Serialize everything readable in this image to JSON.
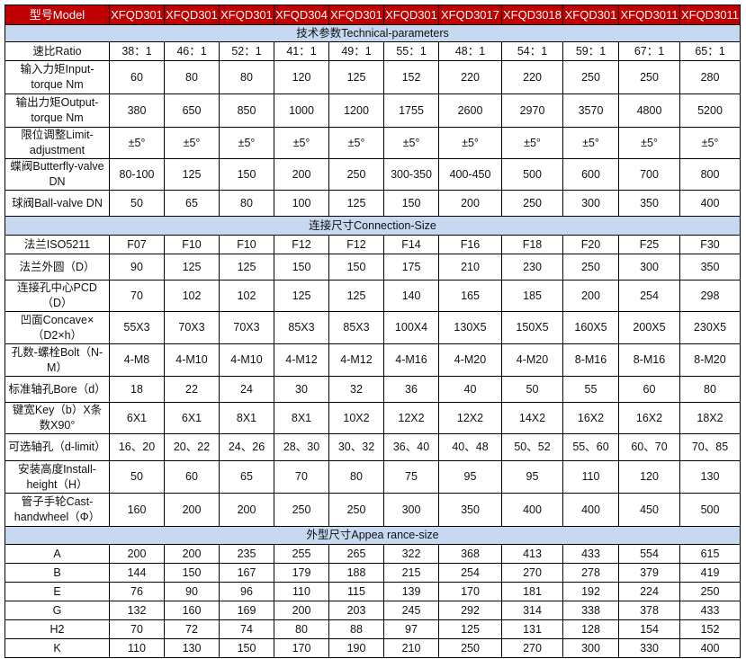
{
  "header": {
    "label": "型号Model",
    "models": [
      "XFQD301",
      "XFQD301",
      "XFQD301",
      "XFQD304",
      "XFQD301",
      "XFQD301",
      "XFQD3017",
      "XFQD3018",
      "XFQD301",
      "XFQD3011",
      "XFQD3011"
    ]
  },
  "colors": {
    "header_bg": "#c00000",
    "section_bg": "#c6d9f0"
  },
  "sections": [
    {
      "title": "技术参数Technical-parameters",
      "rows": [
        {
          "label": "速比Ratio",
          "values": [
            "38：1",
            "46：1",
            "52：1",
            "41：1",
            "49：1",
            "55：1",
            "48：1",
            "54：1",
            "59：1",
            "67：1",
            "65：1"
          ]
        },
        {
          "label": "输入力矩Input-torque Nm",
          "values": [
            "60",
            "80",
            "80",
            "120",
            "125",
            "152",
            "220",
            "220",
            "250",
            "250",
            "280"
          ]
        },
        {
          "label": "输出力矩Output-torque Nm",
          "values": [
            "380",
            "650",
            "850",
            "1000",
            "1200",
            "1755",
            "2600",
            "2970",
            "3570",
            "4800",
            "5200"
          ]
        },
        {
          "label": "限位调整Limit-adjustment",
          "values": [
            "±5°",
            "±5°",
            "±5°",
            "±5°",
            "±5°",
            "±5°",
            "±5°",
            "±5°",
            "±5°",
            "±5°",
            "±5°"
          ]
        },
        {
          "label": "蝶阀Butterfly-valve DN",
          "values": [
            "80-100",
            "125",
            "150",
            "200",
            "250",
            "300-350",
            "400-450",
            "500",
            "600",
            "700",
            "800"
          ]
        },
        {
          "label": "球阀Ball-valve DN",
          "values": [
            "50",
            "65",
            "80",
            "100",
            "125",
            "150",
            "200",
            "250",
            "300",
            "350",
            "400"
          ]
        }
      ]
    },
    {
      "title": "连接尺寸Connection-Size",
      "rows": [
        {
          "label": "法兰ISO5211",
          "values": [
            "F07",
            "F10",
            "F10",
            "F12",
            "F12",
            "F14",
            "F16",
            "F18",
            "F20",
            "F25",
            "F30"
          ]
        },
        {
          "label": "法兰外圆（D）",
          "values": [
            "90",
            "125",
            "125",
            "150",
            "150",
            "175",
            "210",
            "230",
            "250",
            "300",
            "350"
          ]
        },
        {
          "label": "连接孔中心PCD（D）",
          "values": [
            "70",
            "102",
            "102",
            "125",
            "125",
            "140",
            "165",
            "185",
            "200",
            "254",
            "298"
          ]
        },
        {
          "label": "凹面Concave×（D2×h）",
          "values": [
            "55X3",
            "70X3",
            "70X3",
            "85X3",
            "85X3",
            "100X4",
            "130X5",
            "150X5",
            "160X5",
            "200X5",
            "230X5"
          ]
        },
        {
          "label": "孔数-螺栓Bolt（N-M）",
          "values": [
            "4-M8",
            "4-M10",
            "4-M10",
            "4-M12",
            "4-M12",
            "4-M16",
            "4-M20",
            "4-M20",
            "8-M16",
            "8-M16",
            "8-M20"
          ]
        },
        {
          "label": "标准轴孔Bore（d）",
          "values": [
            "18",
            "22",
            "24",
            "30",
            "32",
            "36",
            "40",
            "50",
            "55",
            "60",
            "80"
          ]
        },
        {
          "label": "键宽Key（b）X条数X90°",
          "values": [
            "6X1",
            "6X1",
            "8X1",
            "8X1",
            "10X2",
            "12X2",
            "12X2",
            "14X2",
            "16X2",
            "16X2",
            "18X2"
          ]
        },
        {
          "label": "可选轴孔（d-limit）",
          "values": [
            "16、20",
            "20、22",
            "24、26",
            "28、30",
            "30、32",
            "36、40",
            "40、48",
            "50、52",
            "55、60",
            "60、70",
            "70、85"
          ]
        },
        {
          "label": "安装高度Install-height（H）",
          "values": [
            "50",
            "60",
            "65",
            "70",
            "80",
            "75",
            "95",
            "95",
            "110",
            "120",
            "130"
          ]
        },
        {
          "label": "管子手轮Cast-handwheel（Φ）",
          "values": [
            "160",
            "200",
            "200",
            "250",
            "250",
            "300",
            "350",
            "400",
            "400",
            "450",
            "500"
          ]
        }
      ]
    },
    {
      "title": "外型尺寸Appea rance-size",
      "rows": [
        {
          "label": "A",
          "values": [
            "200",
            "200",
            "235",
            "255",
            "265",
            "322",
            "368",
            "413",
            "433",
            "554",
            "615"
          ]
        },
        {
          "label": "B",
          "values": [
            "144",
            "150",
            "167",
            "179",
            "188",
            "215",
            "254",
            "270",
            "278",
            "379",
            "419"
          ]
        },
        {
          "label": "E",
          "values": [
            "76",
            "90",
            "96",
            "110",
            "115",
            "139",
            "170",
            "181",
            "192",
            "224",
            "250"
          ]
        },
        {
          "label": "G",
          "values": [
            "132",
            "160",
            "169",
            "200",
            "203",
            "245",
            "292",
            "314",
            "338",
            "378",
            "433"
          ]
        },
        {
          "label": "H2",
          "values": [
            "70",
            "72",
            "74",
            "80",
            "88",
            "97",
            "125",
            "131",
            "128",
            "154",
            "152"
          ]
        },
        {
          "label": "K",
          "values": [
            "110",
            "130",
            "150",
            "170",
            "190",
            "210",
            "250",
            "270",
            "300",
            "330",
            "400"
          ]
        }
      ]
    }
  ]
}
